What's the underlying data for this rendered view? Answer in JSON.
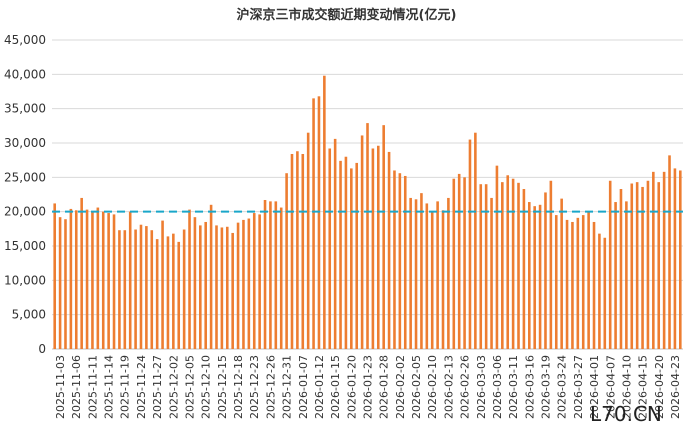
{
  "chart_data": {
    "type": "bar",
    "title": "沪深京三市成交额近期变动情况(亿元)",
    "xlabel": "",
    "ylabel": "",
    "ylim": [
      0,
      45000
    ],
    "yticks": [
      "0",
      "5,000",
      "10,000",
      "15,000",
      "20,000",
      "25,000",
      "30,000",
      "35,000",
      "40,000",
      "45,000"
    ],
    "ytick_values": [
      0,
      5000,
      10000,
      15000,
      20000,
      25000,
      30000,
      35000,
      40000,
      45000
    ],
    "x_tick_labels": [
      "2025-11-03",
      "2025-11-06",
      "2025-11-11",
      "2025-11-14",
      "2025-11-19",
      "2025-11-24",
      "2025-11-27",
      "2025-12-02",
      "2025-12-05",
      "2025-12-10",
      "2025-12-15",
      "2025-12-18",
      "2025-12-23",
      "2025-12-26",
      "2025-12-31",
      "2026-01-07",
      "2026-01-12",
      "2026-01-15",
      "2026-01-20",
      "2026-01-23",
      "2026-01-28",
      "2026-02-02",
      "2026-02-05",
      "2026-02-10",
      "2026-02-13",
      "2026-02-26",
      "2026-03-03",
      "2026-03-06",
      "2026-03-11",
      "2026-03-16",
      "2026-03-19",
      "2026-03-24",
      "2026-03-27",
      "2026-04-01",
      "2026-04-07",
      "2026-04-10",
      "2026-04-15",
      "2026-04-20",
      "2026-04-23"
    ],
    "values": [
      21200,
      19200,
      18900,
      20400,
      20200,
      22000,
      20300,
      19900,
      20600,
      20000,
      19800,
      19600,
      17300,
      17300,
      20000,
      17400,
      18100,
      17900,
      17300,
      16000,
      18700,
      16400,
      16800,
      15600,
      17400,
      20300,
      19200,
      18000,
      18500,
      21000,
      18000,
      17700,
      17800,
      16900,
      18400,
      18800,
      19000,
      19800,
      19600,
      21700,
      21500,
      21500,
      20600,
      25600,
      28400,
      28800,
      28400,
      31500,
      36500,
      36800,
      39800,
      29200,
      30600,
      27400,
      28000,
      26300,
      27100,
      31100,
      32900,
      29200,
      29600,
      32600,
      28700,
      26000,
      25600,
      25200,
      22000,
      21800,
      22700,
      21200,
      19900,
      21500,
      20200,
      22000,
      24800,
      25500,
      25000,
      30500,
      31500,
      24000,
      24000,
      22000,
      26700,
      24300,
      25300,
      24800,
      24200,
      23300,
      21400,
      20800,
      21000,
      22800,
      24500,
      19500,
      21900,
      18800,
      18500,
      19100,
      19500,
      20000,
      18500,
      16800,
      16200,
      24500,
      21400,
      23300,
      21500,
      24100,
      24300,
      23600,
      24500,
      25800,
      24300,
      25800,
      28200,
      26300,
      26000
    ],
    "reference_line": 20000,
    "colors": {
      "bar": "#ED7D31",
      "reference_line": "#1AA6C9",
      "grid": "#D9D9D9"
    }
  },
  "watermark": {
    "text": "L70.CN"
  }
}
